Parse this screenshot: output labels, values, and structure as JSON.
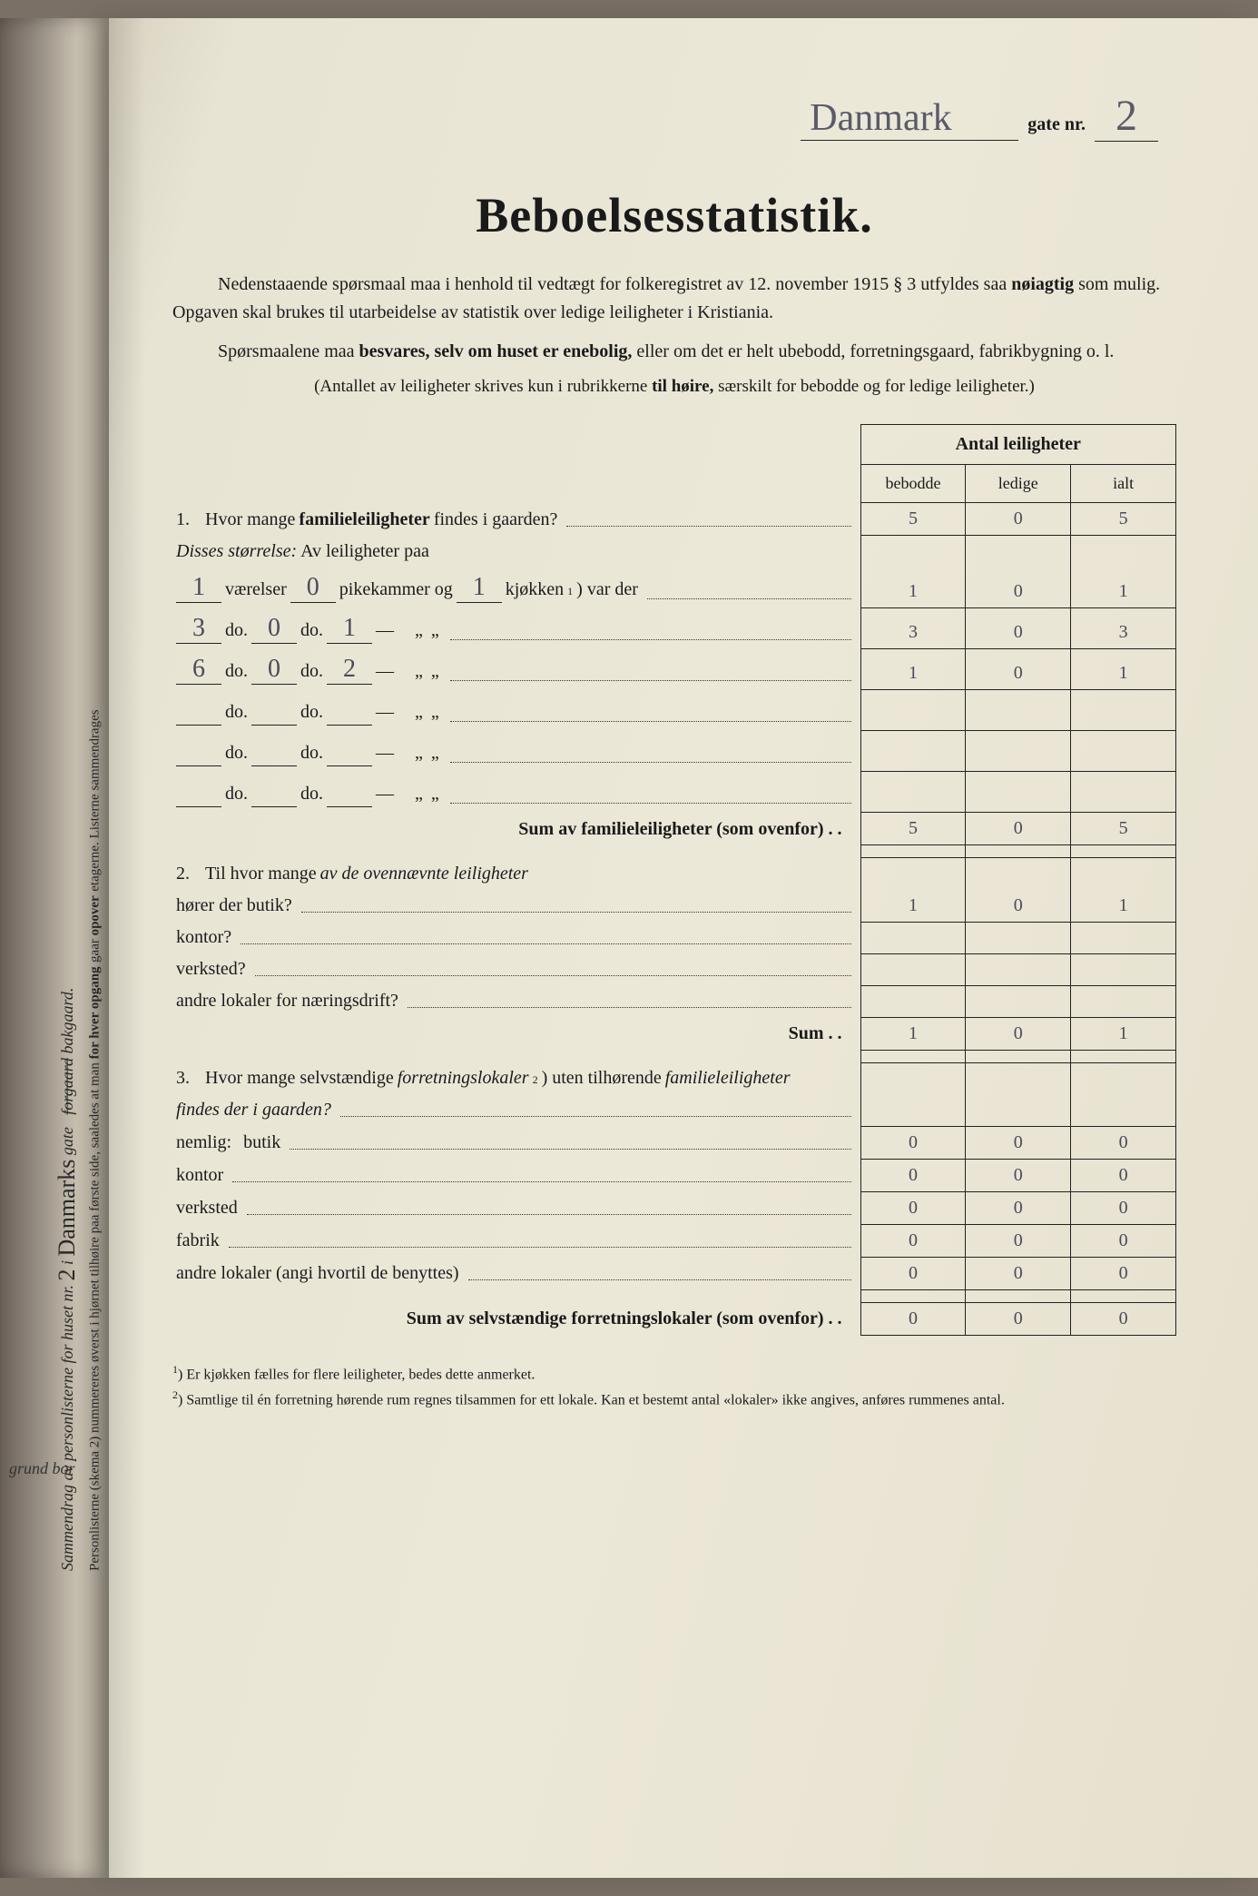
{
  "header": {
    "street_script": "Danmark",
    "gate_label": "gate nr.",
    "gate_nr": "2"
  },
  "title": "Beboelsesstatistik.",
  "intro": {
    "p1a": "Nedenstaaende spørsmaal maa i henhold til vedtægt for folkeregistret av 12. november 1915 § 3 utfyldes saa ",
    "p1b": "nøiagtig",
    "p1c": " som mulig. Opgaven skal brukes til utarbeidelse av statistik over ledige leiligheter i Kristiania.",
    "p2a": "Spørsmaalene maa ",
    "p2b": "besvares, selv om huset er enebolig,",
    "p2c": " eller om det er helt ubebodd, forretningsgaard, fabrikbygning o. l.",
    "paren_a": "(Antallet av leiligheter skrives kun i rubrikkerne ",
    "paren_b": "til høire,",
    "paren_c": " særskilt for bebodde og for ledige leiligheter.)"
  },
  "table_head": {
    "main": "Antal leiligheter",
    "c1": "bebodde",
    "c2": "ledige",
    "c3": "ialt"
  },
  "q1": {
    "num": "1.",
    "text_a": "Hvor mange ",
    "text_b": "familieleiligheter",
    "text_c": " findes i gaarden?",
    "vals": [
      "5",
      "0",
      "5"
    ],
    "disses": "Disses størrelse:",
    "av": " Av leiligheter paa",
    "row1": {
      "v": "1",
      "p": "0",
      "k": "1",
      "label_v": "værelser",
      "label_p": "pikekammer og",
      "label_k": "kjøkken",
      "sup": "1",
      "tail": ") var der",
      "vals": [
        "1",
        "0",
        "1"
      ]
    },
    "row2": {
      "v": "3",
      "p": "0",
      "k": "1",
      "vals": [
        "3",
        "0",
        "3"
      ]
    },
    "row3": {
      "v": "6",
      "p": "0",
      "k": "2",
      "vals": [
        "1",
        "0",
        "1"
      ]
    },
    "do": "do.",
    "dash": "—",
    "ditto": "„   „",
    "sum_label": "Sum av familieleiligheter",
    "sum_tail": " (som ovenfor)",
    "sum_vals": [
      "5",
      "0",
      "5"
    ]
  },
  "q2": {
    "num": "2.",
    "text_a": "Til hvor mange ",
    "text_b": "av de ovennævnte leiligheter",
    "r1": "hører der butik?",
    "r1_vals": [
      "1",
      "0",
      "1"
    ],
    "r2": "kontor?",
    "r3": "verksted?",
    "r4": "andre lokaler for næringsdrift?",
    "sum_label": "Sum",
    "sum_vals": [
      "1",
      "0",
      "1"
    ]
  },
  "q3": {
    "num": "3.",
    "text_a": "Hvor mange selvstændige ",
    "text_b": "forretningslokaler",
    "sup": "2",
    "text_c": ") uten tilhørende ",
    "text_d": "familieleiligheter",
    "text_e": "findes der i gaarden?",
    "nemlig": "nemlig:",
    "r1": "butik",
    "r1_vals": [
      "0",
      "0",
      "0"
    ],
    "r2": "kontor",
    "r2_vals": [
      "0",
      "0",
      "0"
    ],
    "r3": "verksted",
    "r3_vals": [
      "0",
      "0",
      "0"
    ],
    "r4": "fabrik",
    "r4_vals": [
      "0",
      "0",
      "0"
    ],
    "r5": "andre lokaler (angi hvortil de benyttes)",
    "r5_vals": [
      "0",
      "0",
      "0"
    ],
    "sum_label": "Sum av selvstændige forretningslokaler",
    "sum_tail": " (som ovenfor)",
    "sum_vals": [
      "0",
      "0",
      "0"
    ]
  },
  "footnotes": {
    "f1_sup": "1",
    "f1": ") Er kjøkken fælles for flere leiligheter, bedes dette anmerket.",
    "f2_sup": "2",
    "f2": ") Samtlige til én forretning hørende rum regnes tilsammen for ett lokale. Kan et bestemt antal «lokaler» ikke angives, anføres rummenes antal."
  },
  "side": {
    "line1": "Sammendrag av personlisterne for huset nr.",
    "nr": "2",
    "i": " i ",
    "street": "Danmarks",
    "gate": "gate",
    "forgaard": "forgaard",
    "bakgaard": "bakgaard.",
    "line2": "Personlisterne (skema 2) nummereres øverst i hjørnet tilhøire paa første side, saaledes at man ",
    "line2b": "for hver opgang",
    "line2c": " gaar ",
    "line2d": "opover",
    "line2e": " etagerne. Listerne sammendrages",
    "grund": "grund bor"
  }
}
